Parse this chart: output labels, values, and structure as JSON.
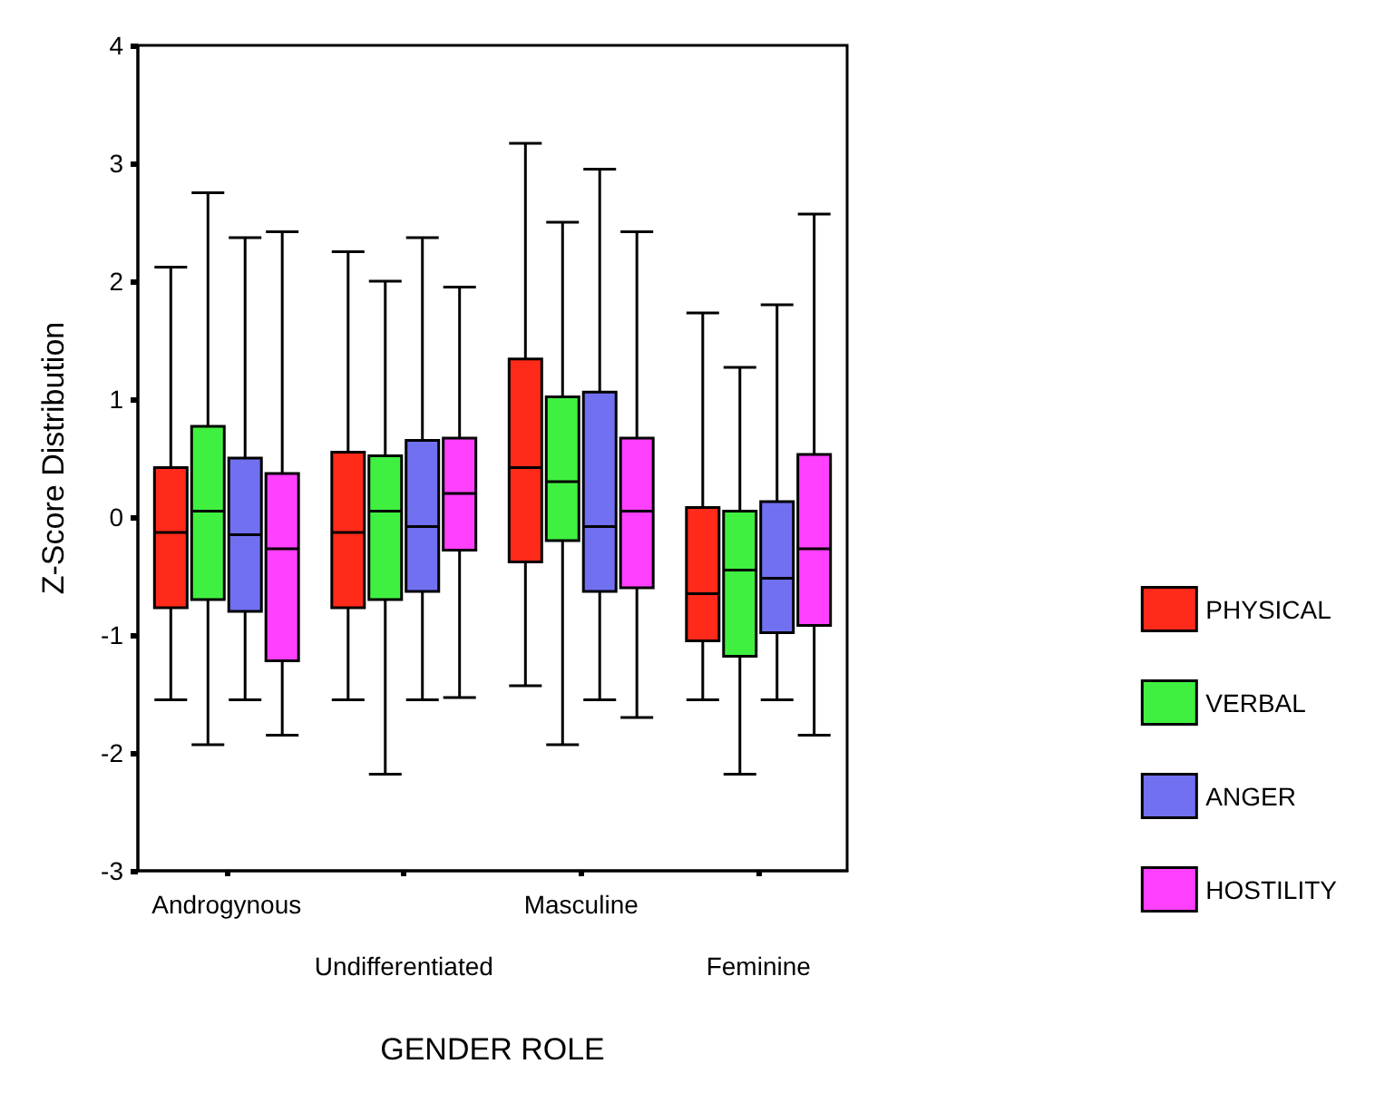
{
  "chart_data": {
    "type": "box",
    "xlabel": "GENDER ROLE",
    "ylabel": "Z-Score Distribution",
    "categories": [
      "Androgynous",
      "Undifferentiated",
      "Masculine",
      "Feminine"
    ],
    "ylim": [
      -3,
      4
    ],
    "yticks": [
      -3,
      -2,
      -1,
      0,
      1,
      2,
      3,
      4
    ],
    "grid": false,
    "legend": "right",
    "series": [
      {
        "name": "PHYSICAL",
        "color": "#ff2a1a",
        "boxes": [
          {
            "low": -1.55,
            "q1": -0.77,
            "median": -0.13,
            "q3": 0.42,
            "high": 2.12
          },
          {
            "low": -1.55,
            "q1": -0.77,
            "median": -0.13,
            "q3": 0.55,
            "high": 2.25
          },
          {
            "low": -1.43,
            "q1": -0.38,
            "median": 0.42,
            "q3": 1.34,
            "high": 3.17
          },
          {
            "low": -1.55,
            "q1": -1.05,
            "median": -0.65,
            "q3": 0.08,
            "high": 1.73
          }
        ]
      },
      {
        "name": "VERBAL",
        "color": "#40f040",
        "boxes": [
          {
            "low": -1.93,
            "q1": -0.7,
            "median": 0.05,
            "q3": 0.77,
            "high": 2.75
          },
          {
            "low": -2.18,
            "q1": -0.7,
            "median": 0.05,
            "q3": 0.52,
            "high": 2.0
          },
          {
            "low": -1.93,
            "q1": -0.2,
            "median": 0.3,
            "q3": 1.02,
            "high": 2.5
          },
          {
            "low": -2.18,
            "q1": -1.18,
            "median": -0.45,
            "q3": 0.05,
            "high": 1.27
          }
        ]
      },
      {
        "name": "ANGER",
        "color": "#7070f0",
        "boxes": [
          {
            "low": -1.55,
            "q1": -0.8,
            "median": -0.15,
            "q3": 0.5,
            "high": 2.37
          },
          {
            "low": -1.55,
            "q1": -0.63,
            "median": -0.08,
            "q3": 0.65,
            "high": 2.37
          },
          {
            "low": -1.55,
            "q1": -0.63,
            "median": -0.08,
            "q3": 1.06,
            "high": 2.95
          },
          {
            "low": -1.55,
            "q1": -0.98,
            "median": -0.52,
            "q3": 0.13,
            "high": 1.8
          }
        ]
      },
      {
        "name": "HOSTILITY",
        "color": "#ff40ff",
        "boxes": [
          {
            "low": -1.85,
            "q1": -1.22,
            "median": -0.27,
            "q3": 0.37,
            "high": 2.42
          },
          {
            "low": -1.53,
            "q1": -0.28,
            "median": 0.2,
            "q3": 0.67,
            "high": 1.95
          },
          {
            "low": -1.7,
            "q1": -0.6,
            "median": 0.05,
            "q3": 0.67,
            "high": 2.42
          },
          {
            "low": -1.85,
            "q1": -0.92,
            "median": -0.27,
            "q3": 0.53,
            "high": 2.57
          }
        ]
      }
    ]
  }
}
